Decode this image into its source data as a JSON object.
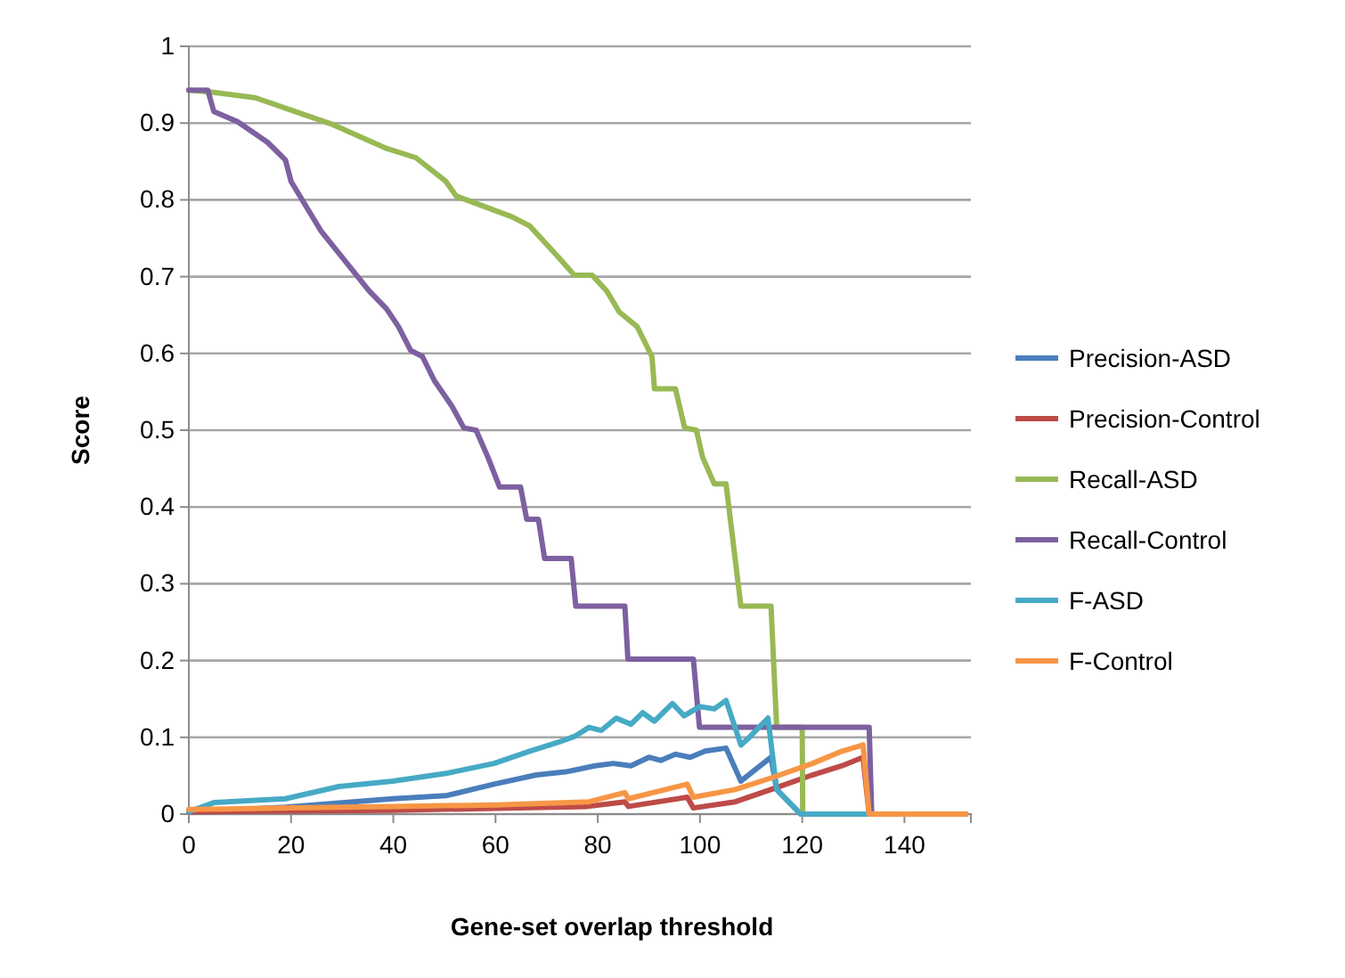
{
  "chart_data": {
    "type": "line",
    "xlabel": "Gene-set overlap threshold",
    "ylabel": "Score",
    "xlim": [
      0,
      153
    ],
    "xticks": [
      0,
      20,
      40,
      60,
      80,
      100,
      120,
      140
    ],
    "ylim": [
      0,
      1
    ],
    "yticks": [
      0,
      0.1,
      0.2,
      0.3,
      0.4,
      0.5,
      0.6,
      0.7,
      0.8,
      0.9,
      1
    ],
    "grid": "y",
    "legend": "right",
    "series": [
      {
        "name": "Precision-ASD",
        "color": "#4a7ebb",
        "x": [
          0,
          18.9,
          39.9,
          50.3,
          59.7,
          68,
          73.7,
          79.5,
          83,
          86.5,
          90,
          92.3,
          95.2,
          98.1,
          101,
          105.1,
          108,
          113.9,
          115,
          119.7,
          152
        ],
        "values": [
          0.003,
          0.009,
          0.02,
          0.024,
          0.039,
          0.051,
          0.055,
          0.063,
          0.066,
          0.063,
          0.074,
          0.07,
          0.078,
          0.074,
          0.082,
          0.086,
          0.043,
          0.074,
          0.032,
          0,
          0
        ]
      },
      {
        "name": "Precision-Control",
        "color": "#be4b48",
        "x": [
          0,
          40,
          78,
          85.3,
          86,
          97.5,
          98.7,
          106.9,
          113.9,
          122,
          127.8,
          131.9,
          133.1,
          152
        ],
        "values": [
          0.003,
          0.005,
          0.01,
          0.016,
          0.01,
          0.022,
          0.008,
          0.016,
          0.032,
          0.051,
          0.063,
          0.074,
          0,
          0
        ]
      },
      {
        "name": "Recall-ASD",
        "color": "#98b954",
        "x": [
          0,
          4.9,
          13,
          20,
          28.2,
          38.7,
          44.4,
          50.3,
          52.3,
          63.2,
          66.7,
          72.5,
          75.4,
          78.9,
          81.8,
          84.2,
          87.7,
          90.6,
          91.1,
          95.2,
          97,
          99.3,
          100.5,
          102.8,
          105.1,
          108,
          113.9,
          115,
          120,
          120.1,
          152
        ],
        "values": [
          0.943,
          0.94,
          0.933,
          0.917,
          0.898,
          0.867,
          0.855,
          0.824,
          0.805,
          0.778,
          0.766,
          0.724,
          0.702,
          0.702,
          0.681,
          0.654,
          0.635,
          0.596,
          0.554,
          0.554,
          0.503,
          0.5,
          0.465,
          0.43,
          0.43,
          0.271,
          0.271,
          0.113,
          0.113,
          0,
          0
        ]
      },
      {
        "name": "Recall-Control",
        "color": "#7d60a0",
        "x": [
          0,
          3.7,
          4.9,
          9.5,
          15.4,
          18.9,
          20,
          25.9,
          32.9,
          35.2,
          38.7,
          41,
          43.4,
          45.7,
          48,
          51.5,
          53.8,
          56.2,
          58.5,
          60.8,
          64.9,
          66.1,
          68.4,
          69.6,
          74.8,
          75.7,
          85.3,
          85.9,
          98.7,
          99.9,
          133.1,
          133.6,
          152
        ],
        "values": [
          0.943,
          0.943,
          0.915,
          0.902,
          0.875,
          0.852,
          0.824,
          0.759,
          0.701,
          0.682,
          0.658,
          0.635,
          0.604,
          0.596,
          0.565,
          0.531,
          0.503,
          0.5,
          0.465,
          0.426,
          0.426,
          0.384,
          0.384,
          0.333,
          0.333,
          0.271,
          0.271,
          0.202,
          0.202,
          0.113,
          0.113,
          0,
          0
        ]
      },
      {
        "name": "F-ASD",
        "color": "#46aac5",
        "x": [
          0,
          4.9,
          18.9,
          29.4,
          39.9,
          50.3,
          59.7,
          66.7,
          72.5,
          75.4,
          78.3,
          80.7,
          83.6,
          86.5,
          88.8,
          91.1,
          94.6,
          96.9,
          99.9,
          102.8,
          105.1,
          108,
          109.8,
          113.3,
          115,
          119.7,
          152
        ],
        "values": [
          0.003,
          0.015,
          0.02,
          0.036,
          0.043,
          0.053,
          0.066,
          0.082,
          0.094,
          0.101,
          0.113,
          0.109,
          0.125,
          0.117,
          0.132,
          0.121,
          0.144,
          0.128,
          0.14,
          0.137,
          0.148,
          0.09,
          0.101,
          0.125,
          0.032,
          0,
          0
        ]
      },
      {
        "name": "F-Control",
        "color": "#f79646",
        "x": [
          0,
          20,
          40,
          60,
          78.3,
          85.3,
          86,
          97.5,
          98.7,
          106.9,
          113.9,
          122,
          127.8,
          131.9,
          133.1,
          152
        ],
        "values": [
          0.006,
          0.008,
          0.01,
          0.012,
          0.016,
          0.028,
          0.02,
          0.039,
          0.022,
          0.032,
          0.047,
          0.066,
          0.082,
          0.09,
          0,
          0
        ]
      }
    ]
  }
}
